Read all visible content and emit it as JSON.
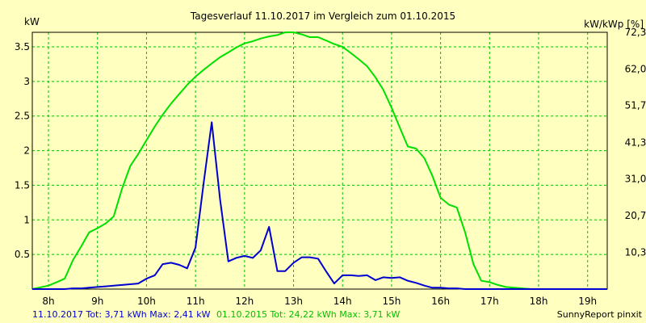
{
  "chart_data": {
    "type": "line",
    "title": "Tagesverlauf 11.10.2017 im Vergleich zum 01.10.2015",
    "left_axis_label": "kW",
    "right_axis_label": "kW/kWp [%]",
    "ylim": [
      0,
      3.71
    ],
    "y_ticks": [
      "0.5",
      "1",
      "1.5",
      "2",
      "2.5",
      "3",
      "3.5"
    ],
    "y_tick_values": [
      0.5,
      1,
      1.5,
      2,
      2.5,
      3,
      3.5
    ],
    "right_ticks": [
      "10,3",
      "20,7",
      "31,0",
      "41,3",
      "51,7",
      "62,0",
      "72,3"
    ],
    "right_tick_values": [
      10.3,
      20.7,
      31.0,
      41.3,
      51.7,
      62.0,
      72.3
    ],
    "right_max": 72.3,
    "xlim": [
      7.67,
      19.4
    ],
    "x_ticks": [
      "8h",
      "9h",
      "10h",
      "11h",
      "12h",
      "13h",
      "14h",
      "15h",
      "16h",
      "17h",
      "18h",
      "19h"
    ],
    "x_tick_values": [
      8,
      9,
      10,
      11,
      12,
      13,
      14,
      15,
      16,
      17,
      18,
      19
    ],
    "grid": true,
    "series": [
      {
        "name": "01.10.2015",
        "color": "#00e000",
        "x": [
          7.67,
          8.0,
          8.17,
          8.33,
          8.5,
          8.67,
          8.83,
          9.0,
          9.17,
          9.33,
          9.5,
          9.67,
          9.83,
          10.0,
          10.17,
          10.33,
          10.5,
          10.67,
          10.83,
          11.0,
          11.17,
          11.33,
          11.5,
          11.67,
          11.83,
          12.0,
          12.17,
          12.33,
          12.5,
          12.67,
          12.83,
          13.0,
          13.17,
          13.33,
          13.5,
          13.67,
          13.83,
          14.0,
          14.17,
          14.33,
          14.5,
          14.67,
          14.83,
          15.0,
          15.17,
          15.33,
          15.5,
          15.67,
          15.83,
          16.0,
          16.17,
          16.33,
          16.5,
          16.67,
          16.83,
          17.0,
          17.17,
          17.33,
          17.5,
          17.67,
          17.83,
          18.0,
          18.17,
          18.33,
          18.5,
          18.67,
          18.83,
          19.0,
          19.17,
          19.4
        ],
        "values": [
          0.0,
          0.05,
          0.1,
          0.15,
          0.42,
          0.62,
          0.82,
          0.88,
          0.95,
          1.05,
          1.45,
          1.78,
          1.95,
          2.15,
          2.35,
          2.52,
          2.68,
          2.82,
          2.95,
          3.07,
          3.17,
          3.26,
          3.35,
          3.42,
          3.49,
          3.55,
          3.58,
          3.62,
          3.65,
          3.67,
          3.71,
          3.71,
          3.68,
          3.64,
          3.64,
          3.59,
          3.54,
          3.5,
          3.41,
          3.32,
          3.22,
          3.06,
          2.88,
          2.62,
          2.33,
          2.06,
          2.03,
          1.89,
          1.64,
          1.32,
          1.22,
          1.18,
          0.82,
          0.36,
          0.12,
          0.1,
          0.06,
          0.03,
          0.02,
          0.01,
          0.0,
          0.0,
          0.0,
          0.0,
          0.0,
          0.0,
          0.0,
          0.0,
          0.0,
          0.0
        ]
      },
      {
        "name": "11.10.2017",
        "color": "#0000d0",
        "x": [
          7.67,
          8.0,
          8.17,
          8.33,
          8.5,
          8.67,
          8.83,
          9.0,
          9.17,
          9.33,
          9.5,
          9.67,
          9.83,
          10.0,
          10.17,
          10.33,
          10.5,
          10.67,
          10.83,
          11.0,
          11.17,
          11.33,
          11.5,
          11.67,
          11.83,
          12.0,
          12.17,
          12.33,
          12.5,
          12.67,
          12.83,
          13.0,
          13.17,
          13.33,
          13.5,
          13.67,
          13.83,
          14.0,
          14.17,
          14.33,
          14.5,
          14.67,
          14.83,
          15.0,
          15.17,
          15.33,
          15.5,
          15.67,
          15.83,
          16.0,
          16.17,
          16.33,
          16.5,
          16.67,
          16.83,
          17.0,
          17.17,
          17.33,
          17.5,
          17.67,
          17.83,
          18.0,
          18.17,
          18.33,
          18.5,
          18.67,
          18.83,
          19.0,
          19.17,
          19.4
        ],
        "values": [
          0.0,
          0.0,
          0.0,
          0.0,
          0.01,
          0.01,
          0.02,
          0.03,
          0.04,
          0.05,
          0.06,
          0.07,
          0.08,
          0.15,
          0.2,
          0.36,
          0.38,
          0.35,
          0.3,
          0.6,
          1.55,
          2.41,
          1.3,
          0.4,
          0.45,
          0.48,
          0.45,
          0.56,
          0.9,
          0.26,
          0.26,
          0.38,
          0.46,
          0.46,
          0.44,
          0.25,
          0.08,
          0.2,
          0.2,
          0.19,
          0.2,
          0.13,
          0.17,
          0.16,
          0.17,
          0.12,
          0.09,
          0.05,
          0.02,
          0.02,
          0.01,
          0.01,
          0.0,
          0.0,
          0.0,
          0.0,
          0.0,
          0.0,
          0.0,
          0.0,
          0.0,
          0.0,
          0.0,
          0.0,
          0.0,
          0.0,
          0.0,
          0.0,
          0.0,
          0.0
        ]
      }
    ],
    "footer": {
      "blue_text": "11.10.2017 Tot: 3,71 kWh Max: 2,41 kW",
      "green_text": "01.10.2015 Tot: 24,22 kWh Max: 3,71 kW",
      "credit": "SunnyReport pinxit"
    }
  }
}
